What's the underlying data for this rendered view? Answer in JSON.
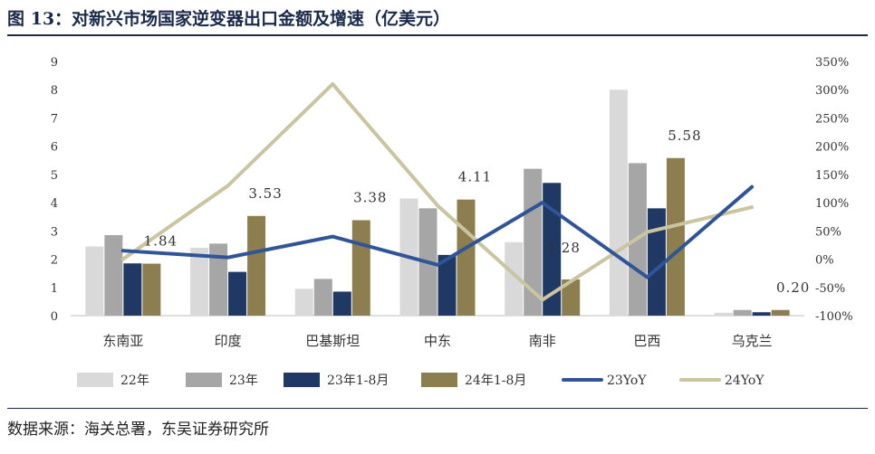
{
  "header": {
    "title": "图 13：对新兴市场国家逆变器出口金额及增速（亿美元）"
  },
  "footer": {
    "source": "数据来源：海关总署，东吴证券研究所"
  },
  "colors": {
    "y22": "#d9d9d9",
    "y23": "#a6a6a6",
    "y23h1": "#1f3864",
    "y24h1": "#8c7e4e",
    "yoy23": "#2f5597",
    "yoy24": "#cbc4a0"
  },
  "chart_data": {
    "type": "bar",
    "title": "对新兴市场国家逆变器出口金额及增速（亿美元）",
    "categories": [
      "东南亚",
      "印度",
      "巴基斯坦",
      "中东",
      "南非",
      "巴西",
      "乌克兰"
    ],
    "series": [
      {
        "name": "22年",
        "kind": "bar",
        "axis": "left",
        "values": [
          2.45,
          2.4,
          0.95,
          4.15,
          2.6,
          8.0,
          0.1
        ]
      },
      {
        "name": "23年",
        "kind": "bar",
        "axis": "left",
        "values": [
          2.85,
          2.55,
          1.3,
          3.8,
          5.2,
          5.4,
          0.2
        ]
      },
      {
        "name": "23年1-8月",
        "kind": "bar",
        "axis": "left",
        "values": [
          1.85,
          1.55,
          0.85,
          2.15,
          4.7,
          3.8,
          0.12
        ]
      },
      {
        "name": "24年1-8月",
        "kind": "bar",
        "axis": "left",
        "values": [
          1.84,
          3.53,
          3.38,
          4.11,
          1.28,
          5.58,
          0.2
        ]
      },
      {
        "name": "23YoY",
        "kind": "line",
        "axis": "right",
        "values": [
          15,
          3,
          40,
          -10,
          100,
          -32,
          128
        ]
      },
      {
        "name": "24YoY",
        "kind": "line",
        "axis": "right",
        "values": [
          0,
          130,
          310,
          95,
          -72,
          48,
          92
        ]
      }
    ],
    "data_labels": [
      "1.84",
      "3.53",
      "3.38",
      "4.11",
      "1.28",
      "5.58",
      "0.20"
    ],
    "ylim": [
      0,
      9
    ],
    "yticks": [
      "0",
      "1",
      "2",
      "3",
      "4",
      "5",
      "6",
      "7",
      "8",
      "9"
    ],
    "y2lim": [
      -100,
      350
    ],
    "y2ticks": [
      "-100%",
      "-50%",
      "0%",
      "50%",
      "100%",
      "150%",
      "200%",
      "250%",
      "300%",
      "350%"
    ],
    "legend_position": "bottom",
    "grid": false
  }
}
